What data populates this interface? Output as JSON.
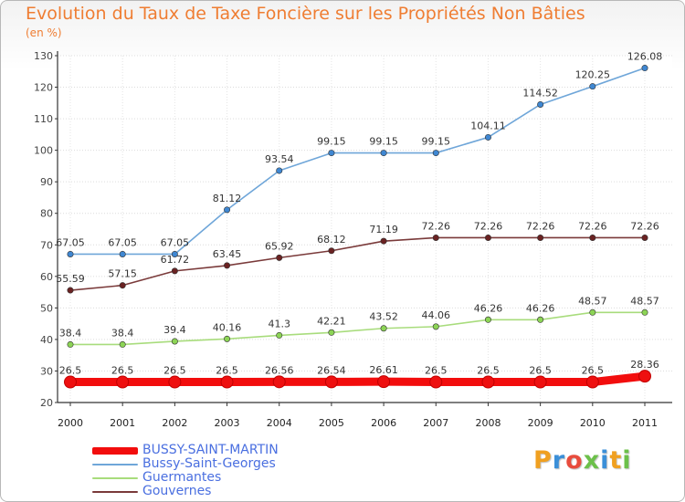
{
  "title": "Evolution du Taux de Taxe Foncière sur les Propriétés Non Bâties",
  "unit": "(en %)",
  "logo": {
    "letters": [
      "P",
      "r",
      "o",
      "x",
      "i",
      "t",
      "i"
    ],
    "colors": [
      "#f0a020",
      "#3b8fd8",
      "#e84c3d",
      "#6cc04a",
      "#3b8fd8",
      "#f0a020",
      "#6cc04a"
    ]
  },
  "chart_data": {
    "type": "line",
    "categories": [
      "2000",
      "2001",
      "2002",
      "2003",
      "2004",
      "2005",
      "2006",
      "2007",
      "2008",
      "2009",
      "2010",
      "2011"
    ],
    "ylim": [
      20,
      130
    ],
    "yticks": [
      "20",
      "30",
      "40",
      "50",
      "60",
      "70",
      "80",
      "90",
      "100",
      "110",
      "120",
      "130"
    ],
    "grid": true,
    "legend_position": "bottom-left",
    "series": [
      {
        "name": "BUSSY-SAINT-MARTIN",
        "color": "#f20d0d",
        "bold": true,
        "values": [
          26.5,
          26.5,
          26.5,
          26.5,
          26.56,
          26.54,
          26.61,
          26.5,
          26.5,
          26.5,
          26.5,
          28.36
        ],
        "labels": [
          "26.5",
          "26.5",
          "26.5",
          "26.5",
          "26.56",
          "26.54",
          "26.61",
          "26.5",
          "26.5",
          "26.5",
          "26.5",
          "28.36"
        ]
      },
      {
        "name": "Bussy-Saint-Georges",
        "color": "#6fa6d9",
        "marker": "#3f87d2",
        "values": [
          67.05,
          67.05,
          67.05,
          81.12,
          93.54,
          99.15,
          99.15,
          99.15,
          104.11,
          114.52,
          120.25,
          126.08
        ],
        "labels": [
          "67.05",
          "67.05",
          "67.05",
          "81.12",
          "93.54",
          "99.15",
          "99.15",
          "99.15",
          "104.11",
          "114.52",
          "120.25",
          "126.08"
        ]
      },
      {
        "name": "Guermantes",
        "color": "#a8dc7c",
        "marker": "#8cd455",
        "values": [
          38.4,
          38.4,
          39.4,
          40.16,
          41.3,
          42.21,
          43.52,
          44.06,
          46.26,
          46.26,
          48.57,
          48.57
        ],
        "labels": [
          "38.4",
          "38.4",
          "39.4",
          "40.16",
          "41.3",
          "42.21",
          "43.52",
          "44.06",
          "46.26",
          "46.26",
          "48.57",
          "48.57"
        ]
      },
      {
        "name": "Gouvernes",
        "color": "#7a3a3a",
        "marker": "#6a2222",
        "values": [
          55.59,
          57.15,
          61.72,
          63.45,
          65.92,
          68.12,
          71.19,
          72.26,
          72.26,
          72.26,
          72.26,
          72.26
        ],
        "labels": [
          "55.59",
          "57.15",
          "61.72",
          "63.45",
          "65.92",
          "68.12",
          "71.19",
          "72.26",
          "72.26",
          "72.26",
          "72.26",
          "72.26"
        ]
      }
    ]
  }
}
